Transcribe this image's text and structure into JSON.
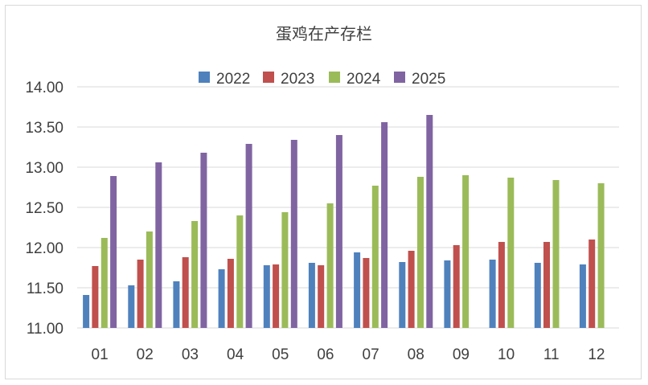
{
  "chart_data": {
    "type": "bar",
    "title": "蛋鸡在产存栏",
    "xlabel": "",
    "ylabel": "",
    "categories": [
      "01",
      "02",
      "03",
      "04",
      "05",
      "06",
      "07",
      "08",
      "09",
      "10",
      "11",
      "12"
    ],
    "ylim": [
      11.0,
      14.0
    ],
    "yticks": [
      "11.00",
      "11.50",
      "12.00",
      "12.50",
      "13.00",
      "13.50",
      "14.00"
    ],
    "grid": true,
    "legend_position": "top",
    "series": [
      {
        "name": "2022",
        "color": "#4f81bd",
        "values": [
          11.41,
          11.53,
          11.58,
          11.73,
          11.78,
          11.81,
          11.94,
          11.82,
          11.84,
          11.85,
          11.81,
          11.79
        ]
      },
      {
        "name": "2023",
        "color": "#c0504d",
        "values": [
          11.77,
          11.85,
          11.88,
          11.86,
          11.79,
          11.78,
          11.87,
          11.96,
          12.03,
          12.07,
          12.07,
          12.1
        ]
      },
      {
        "name": "2024",
        "color": "#9bbb59",
        "values": [
          12.12,
          12.2,
          12.33,
          12.4,
          12.44,
          12.55,
          12.77,
          12.88,
          12.9,
          12.87,
          12.84,
          12.8
        ]
      },
      {
        "name": "2025",
        "color": "#8064a2",
        "values": [
          12.89,
          13.06,
          13.18,
          13.29,
          13.34,
          13.4,
          13.56,
          13.65,
          null,
          null,
          null,
          null
        ]
      }
    ]
  }
}
